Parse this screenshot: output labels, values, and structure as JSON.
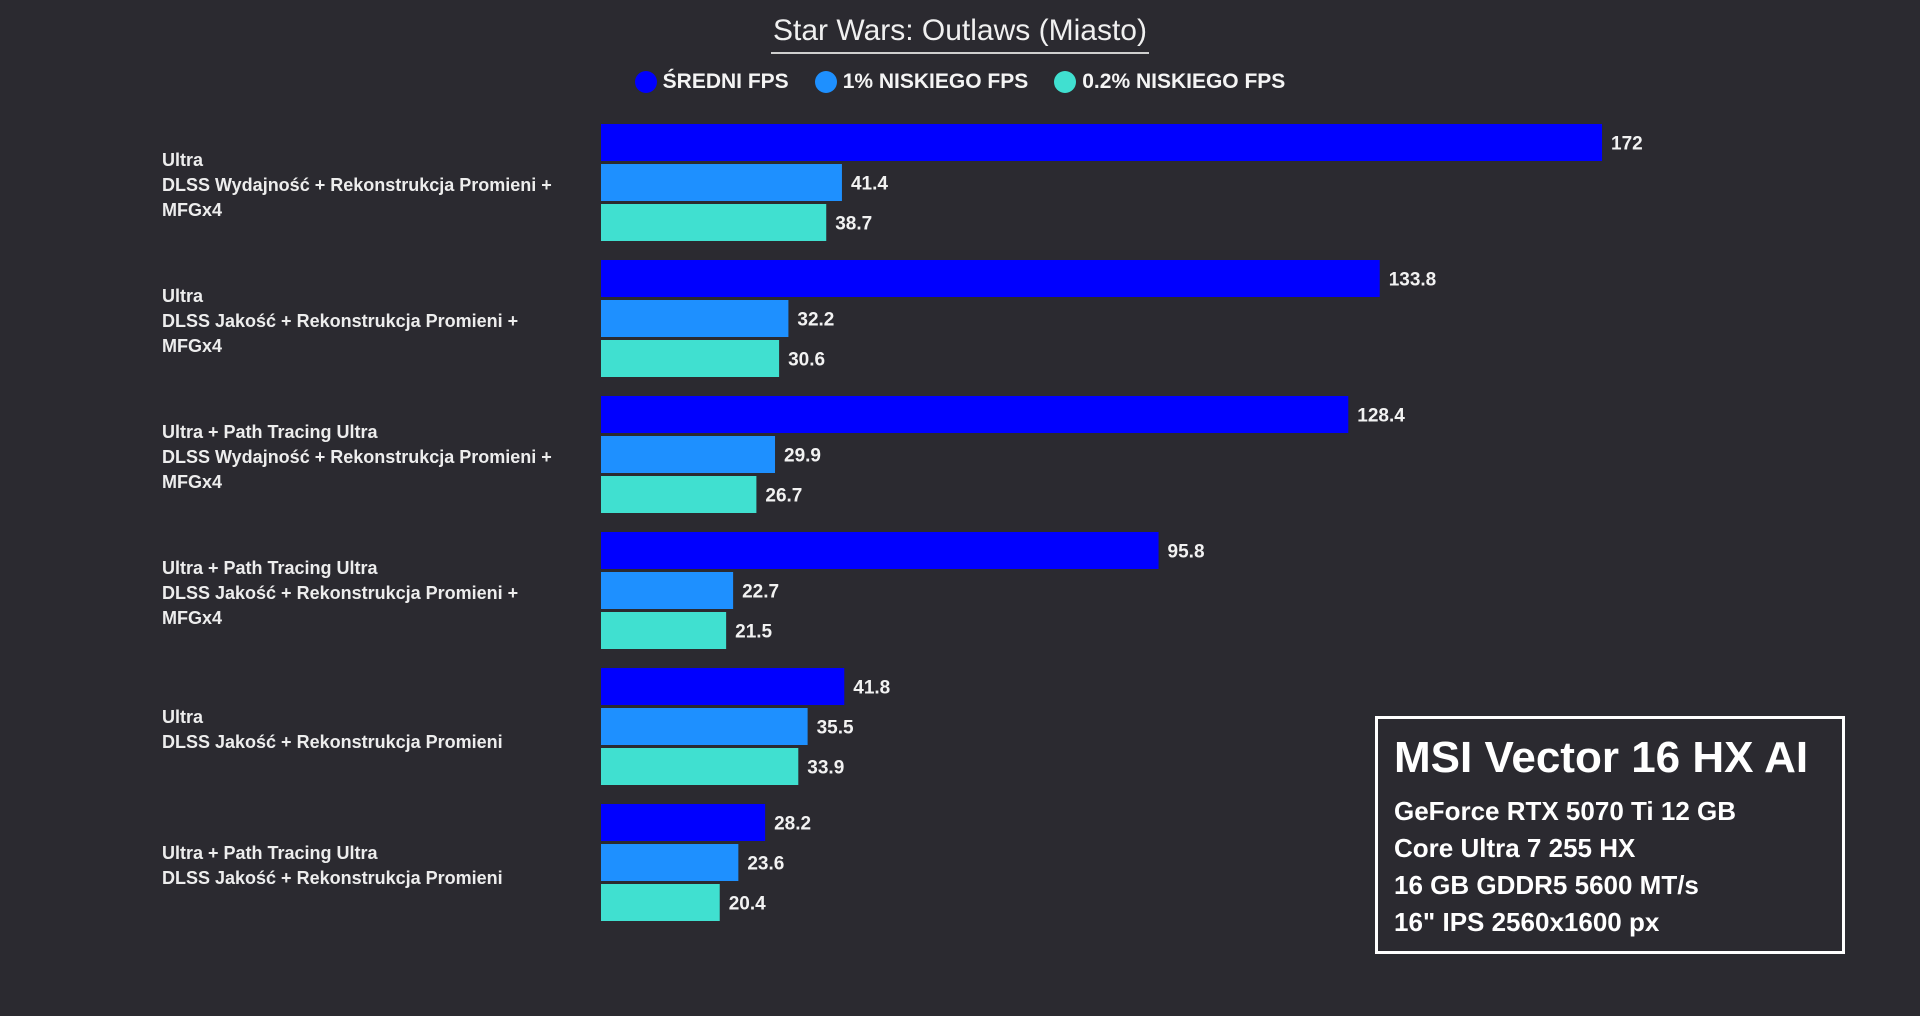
{
  "chart_data": {
    "type": "bar",
    "orientation": "horizontal",
    "title": "Star Wars: Outlaws (Miasto)",
    "legend_placement": "top",
    "grid": false,
    "xlim": [
      0,
      200
    ],
    "categories": [
      [
        "Ultra",
        "DLSS Wydajność + Rekonstrukcja Promieni +",
        "MFGx4"
      ],
      [
        "Ultra",
        "DLSS Jakość + Rekonstrukcja Promieni +",
        "MFGx4"
      ],
      [
        "Ultra + Path Tracing Ultra",
        "DLSS Wydajność + Rekonstrukcja Promieni +",
        "MFGx4"
      ],
      [
        "Ultra + Path Tracing Ultra",
        "DLSS Jakość + Rekonstrukcja Promieni +",
        "MFGx4"
      ],
      [
        "Ultra",
        "DLSS Jakość + Rekonstrukcja Promieni"
      ],
      [
        "Ultra + Path Tracing Ultra",
        "DLSS Jakość + Rekonstrukcja Promieni"
      ]
    ],
    "series": [
      {
        "name": "ŚREDNI FPS",
        "color": "#0000ff",
        "values": [
          172,
          133.8,
          128.4,
          95.8,
          41.8,
          28.2
        ],
        "labels": [
          "172",
          "133.8",
          "128.4",
          "95.8",
          "41.8",
          "28.2"
        ]
      },
      {
        "name": "1% NISKIEGO FPS",
        "color": "#1e90ff",
        "values": [
          41.4,
          32.2,
          29.9,
          22.7,
          35.5,
          23.6
        ],
        "labels": [
          "41.4",
          "32.2",
          "29.9",
          "22.7",
          "35.5",
          "23.6"
        ]
      },
      {
        "name": "0.2% NISKIEGO FPS",
        "color": "#40e0d0",
        "values": [
          38.7,
          30.6,
          26.7,
          21.5,
          33.9,
          20.4
        ],
        "labels": [
          "38.7",
          "30.6",
          "26.7",
          "21.5",
          "33.9",
          "20.4"
        ]
      }
    ]
  },
  "info_box": {
    "title": "MSI Vector 16 HX AI",
    "lines": [
      "GeForce RTX 5070 Ti 12 GB",
      "Core Ultra 7 255 HX",
      "16 GB GDDR5 5600 MT/s",
      "16\" IPS 2560x1600 px"
    ]
  }
}
